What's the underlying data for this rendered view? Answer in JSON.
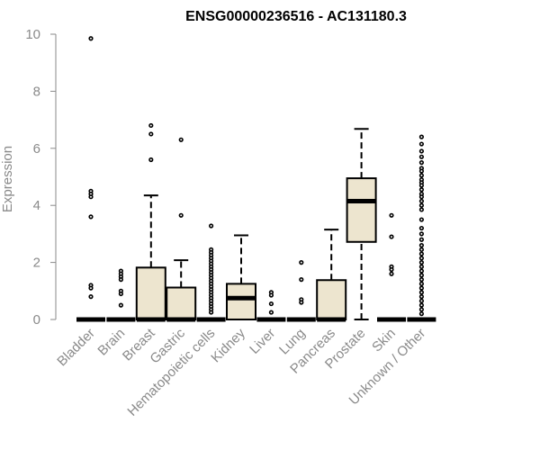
{
  "chart_data": {
    "type": "box",
    "title": "ENSG00000236516 - AC131180.3",
    "xlabel": "",
    "ylabel": "Expression",
    "ylim": [
      0,
      10
    ],
    "yticks": [
      0,
      2,
      4,
      6,
      8,
      10
    ],
    "grid": false,
    "legend": "none",
    "colors": {
      "box_fill": "#ede5cf",
      "outline": "#000000",
      "axis": "#8a8a8a",
      "title": "#000000"
    },
    "categories": [
      "Bladder",
      "Brain",
      "Breast",
      "Gastric",
      "Hematopoietic cells",
      "Kidney",
      "Liver",
      "Lung",
      "Pancreas",
      "Prostate",
      "Skin",
      "Unknown / Other"
    ],
    "boxes": [
      {
        "category": "Bladder",
        "min": 0,
        "q1": 0,
        "median": 0,
        "q3": 0,
        "max": 0,
        "outliers": [
          9.85,
          4.5,
          4.4,
          4.3,
          3.6,
          1.2,
          1.1,
          0.8
        ]
      },
      {
        "category": "Brain",
        "min": 0,
        "q1": 0,
        "median": 0,
        "q3": 0,
        "max": 0,
        "outliers": [
          1.7,
          1.6,
          1.5,
          1.4,
          1.0,
          0.9,
          0.5
        ]
      },
      {
        "category": "Breast",
        "min": 0,
        "q1": 0,
        "median": 0,
        "q3": 1.82,
        "max": 4.35,
        "outliers": [
          6.8,
          6.5,
          5.6
        ]
      },
      {
        "category": "Gastric",
        "min": 0,
        "q1": 0,
        "median": 0,
        "q3": 1.12,
        "max": 2.08,
        "outliers": [
          6.3,
          3.65
        ]
      },
      {
        "category": "Hematopoietic cells",
        "min": 0,
        "q1": 0,
        "median": 0,
        "q3": 0,
        "max": 0,
        "outliers": [
          3.28,
          2.45,
          2.35,
          2.25,
          2.15,
          2.05,
          1.95,
          1.85,
          1.75,
          1.65,
          1.55,
          1.45,
          1.35,
          1.25,
          1.15,
          1.05,
          0.95,
          0.85,
          0.75,
          0.65,
          0.55,
          0.45,
          0.35,
          0.25
        ]
      },
      {
        "category": "Kidney",
        "min": 0,
        "q1": 0,
        "median": 0.75,
        "q3": 1.25,
        "max": 2.95,
        "outliers": []
      },
      {
        "category": "Liver",
        "min": 0,
        "q1": 0,
        "median": 0,
        "q3": 0,
        "max": 0,
        "outliers": [
          0.95,
          0.85,
          0.55,
          0.25
        ]
      },
      {
        "category": "Lung",
        "min": 0,
        "q1": 0,
        "median": 0,
        "q3": 0,
        "max": 0,
        "outliers": [
          2.0,
          1.4,
          0.7,
          0.6
        ]
      },
      {
        "category": "Pancreas",
        "min": 0,
        "q1": 0,
        "median": 0,
        "q3": 1.38,
        "max": 3.15,
        "outliers": []
      },
      {
        "category": "Prostate",
        "min": 0,
        "q1": 2.72,
        "median": 4.15,
        "q3": 4.95,
        "max": 6.68,
        "outliers": []
      },
      {
        "category": "Skin",
        "min": 0,
        "q1": 0,
        "median": 0,
        "q3": 0,
        "max": 0,
        "outliers": [
          3.65,
          2.9,
          1.85,
          1.75,
          1.6
        ]
      },
      {
        "category": "Unknown / Other",
        "min": 0,
        "q1": 0,
        "median": 0,
        "q3": 0,
        "max": 0,
        "outliers": [
          6.4,
          6.15,
          5.9,
          5.7,
          5.5,
          5.3,
          5.2,
          5.05,
          4.9,
          4.8,
          4.7,
          4.55,
          4.4,
          4.3,
          4.15,
          4.0,
          3.85,
          3.5,
          3.2,
          3.0,
          2.8,
          2.6,
          2.45,
          2.3,
          2.15,
          2.0,
          1.85,
          1.7,
          1.55,
          1.4,
          1.25,
          1.1,
          0.95,
          0.8,
          0.65,
          0.5,
          0.35,
          0.2
        ]
      }
    ]
  }
}
